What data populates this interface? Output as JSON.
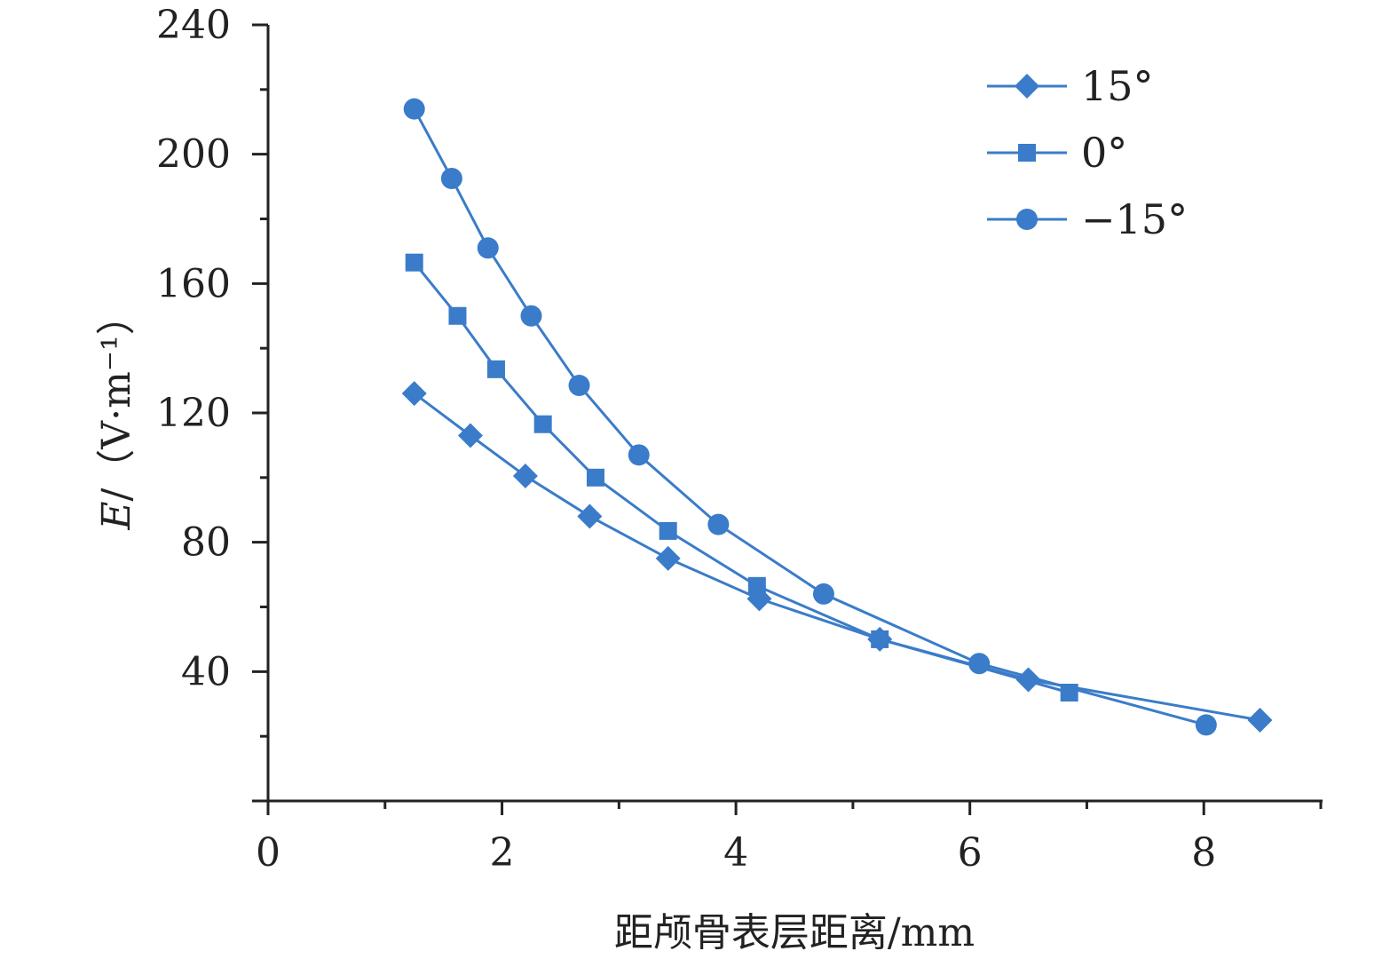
{
  "chart_data": {
    "type": "line",
    "title": "",
    "xlabel": "距颅骨表层距离/mm",
    "ylabel": "E/（V·m⁻¹）",
    "ylabel_parts": {
      "variable": "E",
      "unit": "/（V·m⁻¹）"
    },
    "xlim": [
      0,
      9
    ],
    "ylim": [
      0,
      240
    ],
    "x_ticks": [
      0,
      2,
      4,
      6,
      8
    ],
    "x_tick_labels": [
      "0",
      "2",
      "4",
      "6",
      "8"
    ],
    "x_minor_ticks": [
      1,
      3,
      5,
      7,
      9
    ],
    "y_ticks": [
      40,
      80,
      120,
      160,
      200,
      240
    ],
    "y_tick_labels": [
      "40",
      "80",
      "120",
      "160",
      "200",
      "240"
    ],
    "y_minor_ticks": [
      20,
      60,
      100,
      140,
      180,
      220
    ],
    "grid": false,
    "legend_position": "top-right",
    "color": "#3a7cc9",
    "series": [
      {
        "name": "15°",
        "marker": "diamond",
        "x": [
          1.25,
          1.73,
          2.2,
          2.75,
          3.42,
          4.2,
          5.23,
          6.5,
          8.48
        ],
        "y": [
          126,
          113,
          100.5,
          88,
          75,
          62.5,
          50,
          37.5,
          25
        ]
      },
      {
        "name": "0°",
        "marker": "square",
        "x": [
          1.25,
          1.62,
          1.95,
          2.35,
          2.8,
          3.42,
          4.18,
          5.23,
          6.85
        ],
        "y": [
          166.5,
          150,
          133.5,
          116.5,
          100,
          83.5,
          66.5,
          50,
          33.5
        ]
      },
      {
        "name": "−15°",
        "marker": "circle",
        "x": [
          1.25,
          1.57,
          1.88,
          2.25,
          2.66,
          3.17,
          3.85,
          4.75,
          6.08,
          8.02
        ],
        "y": [
          214,
          192.5,
          171,
          150,
          128.5,
          107,
          85.5,
          64,
          42.5,
          23.5
        ]
      }
    ]
  }
}
